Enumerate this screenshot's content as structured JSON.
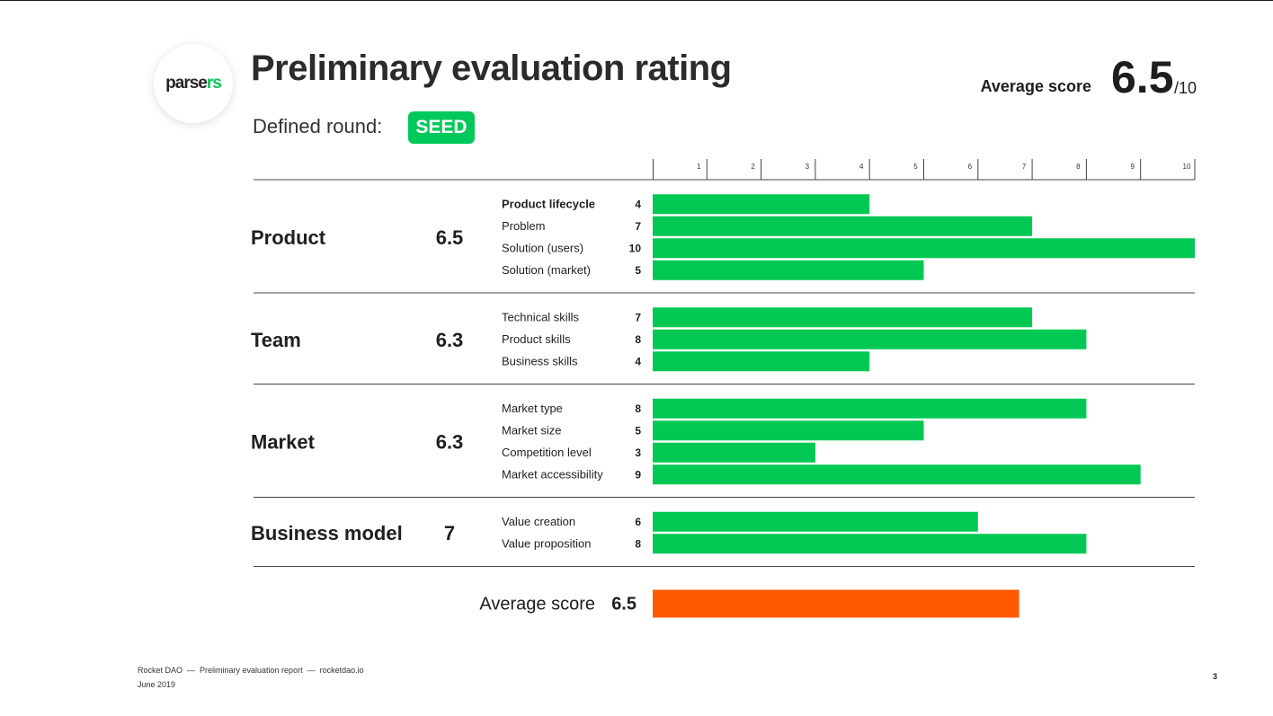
{
  "header": {
    "logo_part1": "parse",
    "logo_part2": "rs",
    "title": "Preliminary evaluation rating",
    "average_label": "Average score",
    "average_value": "6.5",
    "average_max": "/10",
    "round_label": "Defined round:",
    "round_value": "SEED"
  },
  "chart_data": {
    "type": "bar",
    "orientation": "horizontal",
    "title": "Preliminary evaluation rating",
    "xlim": [
      0,
      10
    ],
    "ticks": [
      1,
      2,
      3,
      4,
      5,
      6,
      7,
      8,
      9,
      10
    ],
    "groups": [
      {
        "name": "Product",
        "score": "6.5",
        "items": [
          {
            "label": "Product lifecycle",
            "value": 4,
            "bold": true
          },
          {
            "label": "Problem",
            "value": 7
          },
          {
            "label": "Solution (users)",
            "value": 10
          },
          {
            "label": "Solution (market)",
            "value": 5
          }
        ]
      },
      {
        "name": "Team",
        "score": "6.3",
        "items": [
          {
            "label": "Technical skills",
            "value": 7
          },
          {
            "label": "Product skills",
            "value": 8
          },
          {
            "label": "Business skills",
            "value": 4
          }
        ]
      },
      {
        "name": "Market",
        "score": "6.3",
        "items": [
          {
            "label": "Market type",
            "value": 8
          },
          {
            "label": "Market size",
            "value": 5
          },
          {
            "label": "Competition level",
            "value": 3
          },
          {
            "label": "Market accessibility",
            "value": 9
          }
        ]
      },
      {
        "name": "Business model",
        "score": "7",
        "items": [
          {
            "label": "Value creation",
            "value": 6
          },
          {
            "label": "Value proposition",
            "value": 8
          }
        ]
      }
    ],
    "average": {
      "label": "Average score",
      "value": 6.5,
      "display": "6.5"
    },
    "colors": {
      "bar": "#00c853",
      "average_bar": "#ff5a00",
      "text": "#1f1f1f",
      "rule": "#444444"
    }
  },
  "footer": {
    "line1": "Rocket DAO  —  Preliminary evaluation report  —  rocketdao.io",
    "line2": "June 2019",
    "page": "3"
  }
}
